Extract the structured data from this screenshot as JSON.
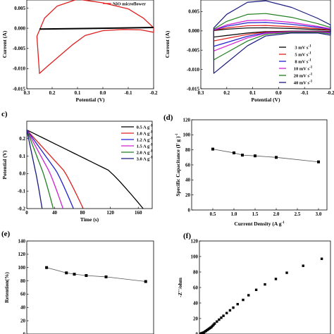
{
  "chart_data": [
    {
      "panel": "a",
      "type": "line",
      "ylabel": "Current (A)",
      "xlabel": "Potential (V)",
      "xlim": [
        0.3,
        -0.2
      ],
      "ylim": [
        -0.015,
        0.007
      ],
      "xticks": [
        "0.3",
        "0.2",
        "0.1",
        "0.0",
        "-0.1",
        "-0.2"
      ],
      "yticks": [
        "0.005",
        "0.000",
        "-0.005",
        "-0.010",
        "-0.015"
      ],
      "legend": "top-right",
      "series": [
        {
          "name": "NiO microflower",
          "color": "#e02020",
          "x": [
            0.25,
            0.22,
            0.17,
            0.12,
            0.07,
            0.0,
            -0.08,
            -0.15,
            -0.2,
            -0.2,
            -0.16,
            -0.1,
            0.0,
            0.1,
            0.18,
            0.23,
            0.26,
            0.25
          ],
          "y": [
            -0.0112,
            -0.0095,
            -0.0068,
            -0.0041,
            -0.0018,
            -0.0006,
            -0.0003,
            -0.0004,
            -0.001,
            0.0001,
            0.0025,
            0.0048,
            0.0063,
            0.0072,
            0.0055,
            0.0025,
            -0.002,
            -0.0112
          ]
        },
        {
          "name": "",
          "color": "#000000",
          "x": [
            0.25,
            0.0,
            -0.2
          ],
          "y": [
            -0.0002,
            0.0,
            0.0002
          ]
        }
      ]
    },
    {
      "panel": "b",
      "type": "line",
      "ylabel": "Current (A)",
      "xlabel": "Potential (V)",
      "xlim": [
        0.3,
        -0.2
      ],
      "ylim": [
        -0.015,
        0.008
      ],
      "xticks": [
        "0.3",
        "0.2",
        "0.1",
        "0.0",
        "-0.1",
        "-0.2"
      ],
      "yticks": [
        "0.005",
        "0.000",
        "-0.005",
        "-0.010",
        "-0.015"
      ],
      "legend": "bottom-right",
      "series": [
        {
          "name": "3 mV s",
          "color": "#000000",
          "top": 0.0008,
          "bottom": -0.0016
        },
        {
          "name": "5 mV s",
          "color": "#e02020",
          "top": 0.0014,
          "bottom": -0.0026
        },
        {
          "name": "8 mV s",
          "color": "#2020d0",
          "top": 0.0022,
          "bottom": -0.004
        },
        {
          "name": "10 mV s",
          "color": "#d020d0",
          "top": 0.0028,
          "bottom": -0.0052
        },
        {
          "name": "20 mV s",
          "color": "#208020",
          "top": 0.0045,
          "bottom": -0.0075
        },
        {
          "name": "40 mV s",
          "color": "#1a1a80",
          "top": 0.0078,
          "bottom": -0.011
        }
      ]
    },
    {
      "panel": "c",
      "type": "line",
      "ylabel": "Potential (V)",
      "xlabel": "Time (s)",
      "xlim": [
        0,
        180
      ],
      "ylim": [
        -0.2,
        0.3
      ],
      "xticks": [
        "0",
        "40",
        "80",
        "120",
        "160"
      ],
      "yticks": [
        "0.2",
        "0.1",
        "0.0",
        "-0.1",
        "-0.2"
      ],
      "legend": "top-right",
      "series": [
        {
          "name": "0.5 A g",
          "color": "#000000",
          "end": 167,
          "knee": 0.7
        },
        {
          "name": "1.0 A g",
          "color": "#e02020",
          "end": 81,
          "knee": 0.65
        },
        {
          "name": "1.2 A g",
          "color": "#2020d0",
          "end": 67,
          "knee": 0.62
        },
        {
          "name": "1.5 A g",
          "color": "#d020d0",
          "end": 52,
          "knee": 0.6
        },
        {
          "name": "2.0 A g",
          "color": "#208020",
          "end": 38,
          "knee": 0.58
        },
        {
          "name": "3.0 A g",
          "color": "#1a1a80",
          "end": 22,
          "knee": 0.55
        }
      ]
    },
    {
      "panel": "d",
      "type": "line",
      "ylabel": "Specific Capacitance (F g )",
      "xlabel": "Current Density (A g )",
      "xlim": [
        0.0,
        3.2
      ],
      "ylim": [
        0,
        120
      ],
      "xticks": [
        "0.5",
        "1.0",
        "1.5",
        "2.0",
        "2.5",
        "3.0"
      ],
      "yticks": [
        "0",
        "20",
        "40",
        "60",
        "80",
        "100",
        "120"
      ],
      "x": [
        0.5,
        1.0,
        1.2,
        1.5,
        2.0,
        3.0
      ],
      "y": [
        81,
        76,
        73,
        72,
        70,
        64
      ]
    },
    {
      "panel": "e",
      "type": "line",
      "ylabel": "Retention(%)",
      "xlabel": "",
      "xlim": [
        0.0,
        3.2
      ],
      "ylim": [
        0,
        140
      ],
      "yticks": [
        "0",
        "20",
        "40",
        "60",
        "80",
        "100",
        "120",
        "140"
      ],
      "x": [
        0.5,
        1.0,
        1.2,
        1.5,
        2.0,
        3.0
      ],
      "y": [
        100,
        92,
        90,
        88,
        86,
        79
      ]
    },
    {
      "panel": "f",
      "type": "scatter",
      "ylabel": "-Z''/ohm",
      "xlabel": "",
      "xlim": [
        0,
        120
      ],
      "ylim": [
        0,
        120
      ],
      "yticks": [
        "0",
        "20",
        "40",
        "60",
        "80",
        "100",
        "120"
      ],
      "x": [
        1,
        2,
        3,
        4,
        5,
        6,
        7,
        8,
        9,
        10,
        11,
        12,
        13,
        14,
        16,
        18,
        20,
        22,
        25,
        28,
        31,
        35,
        40,
        45,
        52,
        60,
        70,
        80,
        95,
        112
      ],
      "y": [
        0.5,
        1,
        1.5,
        2,
        3,
        4,
        5,
        6,
        7,
        8,
        9,
        10.5,
        12,
        13.5,
        16,
        18.5,
        21,
        23.5,
        27,
        30.5,
        34,
        38.5,
        44,
        50,
        57,
        64,
        71,
        79,
        88,
        97
      ]
    }
  ],
  "labels": {
    "a_sup": "",
    "b_sup": "-1",
    "c_sup": "-1",
    "d_sup": "-1"
  },
  "panel_letters": [
    "c)",
    "(d)",
    "(e)",
    "(f)"
  ]
}
